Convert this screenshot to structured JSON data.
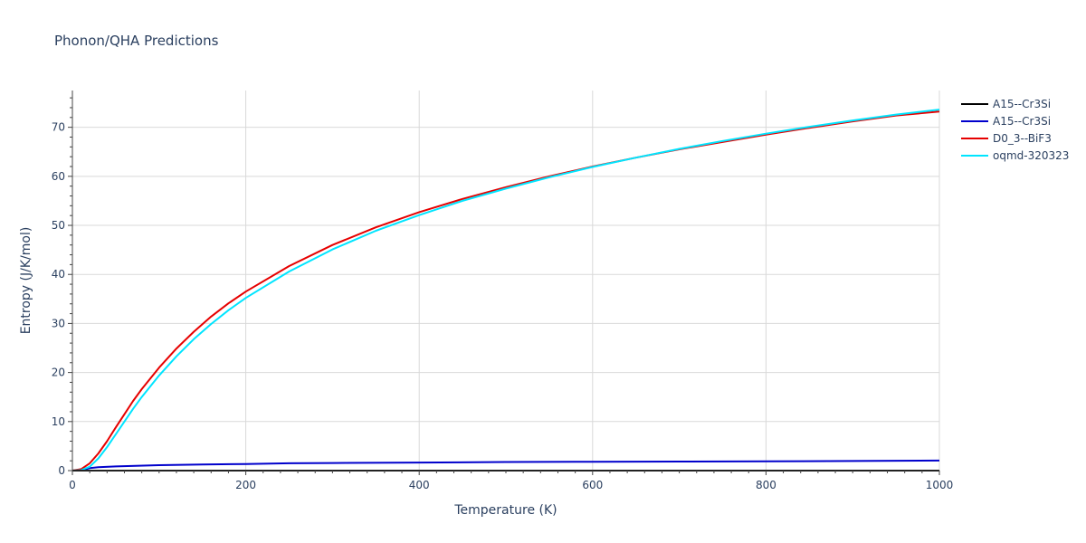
{
  "chart_data": {
    "type": "line",
    "title": "Phonon/QHA Predictions",
    "xlabel": "Temperature (K)",
    "ylabel": "Entropy (J/K/mol)",
    "xlim": [
      0,
      1000
    ],
    "ylim": [
      0,
      77.5
    ],
    "xticks": [
      0,
      200,
      400,
      600,
      800,
      1000
    ],
    "yticks": [
      0,
      10,
      20,
      30,
      40,
      50,
      60,
      70
    ],
    "grid": true,
    "legend_position": "top-right",
    "series": [
      {
        "name": "A15--Cr3Si",
        "color": "#000000",
        "x": [
          0,
          50,
          100,
          200,
          300,
          400,
          500,
          600,
          700,
          800,
          900,
          1000
        ],
        "y": [
          0,
          0,
          0,
          0,
          0,
          0,
          0,
          0,
          0,
          0,
          0,
          0
        ]
      },
      {
        "name": "A15--Cr3Si",
        "color": "#0000cc",
        "x": [
          0,
          10,
          20,
          30,
          50,
          100,
          150,
          200,
          250,
          300,
          400,
          500,
          600,
          700,
          800,
          900,
          1000
        ],
        "y": [
          0,
          0.1,
          0.5,
          0.7,
          0.85,
          1.1,
          1.25,
          1.35,
          1.5,
          1.55,
          1.65,
          1.75,
          1.8,
          1.85,
          1.9,
          1.95,
          2.05
        ]
      },
      {
        "name": "D0_3--BiF3",
        "color": "#e60000",
        "x": [
          0,
          10,
          20,
          30,
          40,
          50,
          60,
          70,
          80,
          100,
          120,
          140,
          160,
          180,
          200,
          250,
          300,
          350,
          400,
          450,
          500,
          550,
          600,
          650,
          700,
          750,
          800,
          850,
          900,
          950,
          1000
        ],
        "y": [
          0,
          0.3,
          1.5,
          3.5,
          6.0,
          8.8,
          11.5,
          14.2,
          16.6,
          21.0,
          24.9,
          28.3,
          31.4,
          34.1,
          36.5,
          41.7,
          46.0,
          49.6,
          52.7,
          55.4,
          57.8,
          60.0,
          62.0,
          63.8,
          65.5,
          67.0,
          68.5,
          69.9,
          71.2,
          72.4,
          73.2
        ]
      },
      {
        "name": "oqmd-320323",
        "color": "#00e5ff",
        "x": [
          0,
          10,
          20,
          30,
          40,
          50,
          60,
          70,
          80,
          100,
          120,
          140,
          160,
          180,
          200,
          250,
          300,
          350,
          400,
          450,
          500,
          550,
          600,
          650,
          700,
          750,
          800,
          850,
          900,
          950,
          1000
        ],
        "y": [
          0,
          0.1,
          0.8,
          2.5,
          4.8,
          7.4,
          10.0,
          12.6,
          15.0,
          19.4,
          23.3,
          26.8,
          29.9,
          32.7,
          35.2,
          40.6,
          45.1,
          48.9,
          52.1,
          55.0,
          57.5,
          59.8,
          61.9,
          63.8,
          65.6,
          67.2,
          68.7,
          70.1,
          71.4,
          72.6,
          73.6
        ]
      }
    ]
  }
}
